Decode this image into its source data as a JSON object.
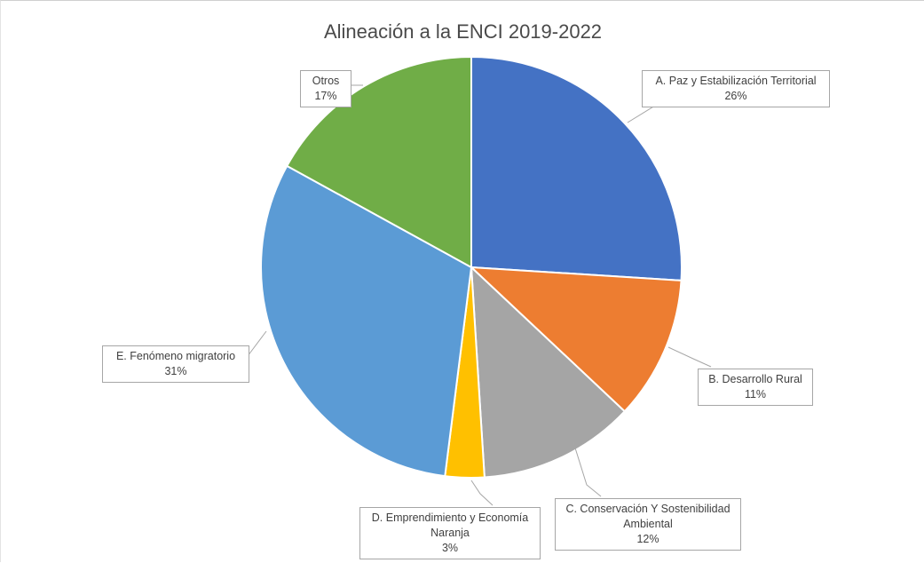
{
  "chart_data": {
    "type": "pie",
    "title": "Alineación a la ENCI 2019-2022",
    "legend": "none",
    "slices": [
      {
        "key": "A",
        "label": "A. Paz y Estabilización Territorial",
        "percent_label": "26%",
        "value": 26,
        "color": "#4472C4"
      },
      {
        "key": "B",
        "label": "B. Desarrollo Rural",
        "percent_label": "11%",
        "value": 11,
        "color": "#ED7D31"
      },
      {
        "key": "C",
        "label": "C. Conservación Y Sostenibilidad Ambiental",
        "percent_label": "12%",
        "value": 12,
        "color": "#A5A5A5"
      },
      {
        "key": "D",
        "label": "D. Emprendimiento y Economía Naranja",
        "percent_label": "3%",
        "value": 3,
        "color": "#FFC000"
      },
      {
        "key": "E",
        "label": "E. Fenómeno migratorio",
        "percent_label": "31%",
        "value": 31,
        "color": "#5B9BD5"
      },
      {
        "key": "O",
        "label": "Otros",
        "percent_label": "17%",
        "value": 17,
        "color": "#70AD47"
      }
    ]
  }
}
